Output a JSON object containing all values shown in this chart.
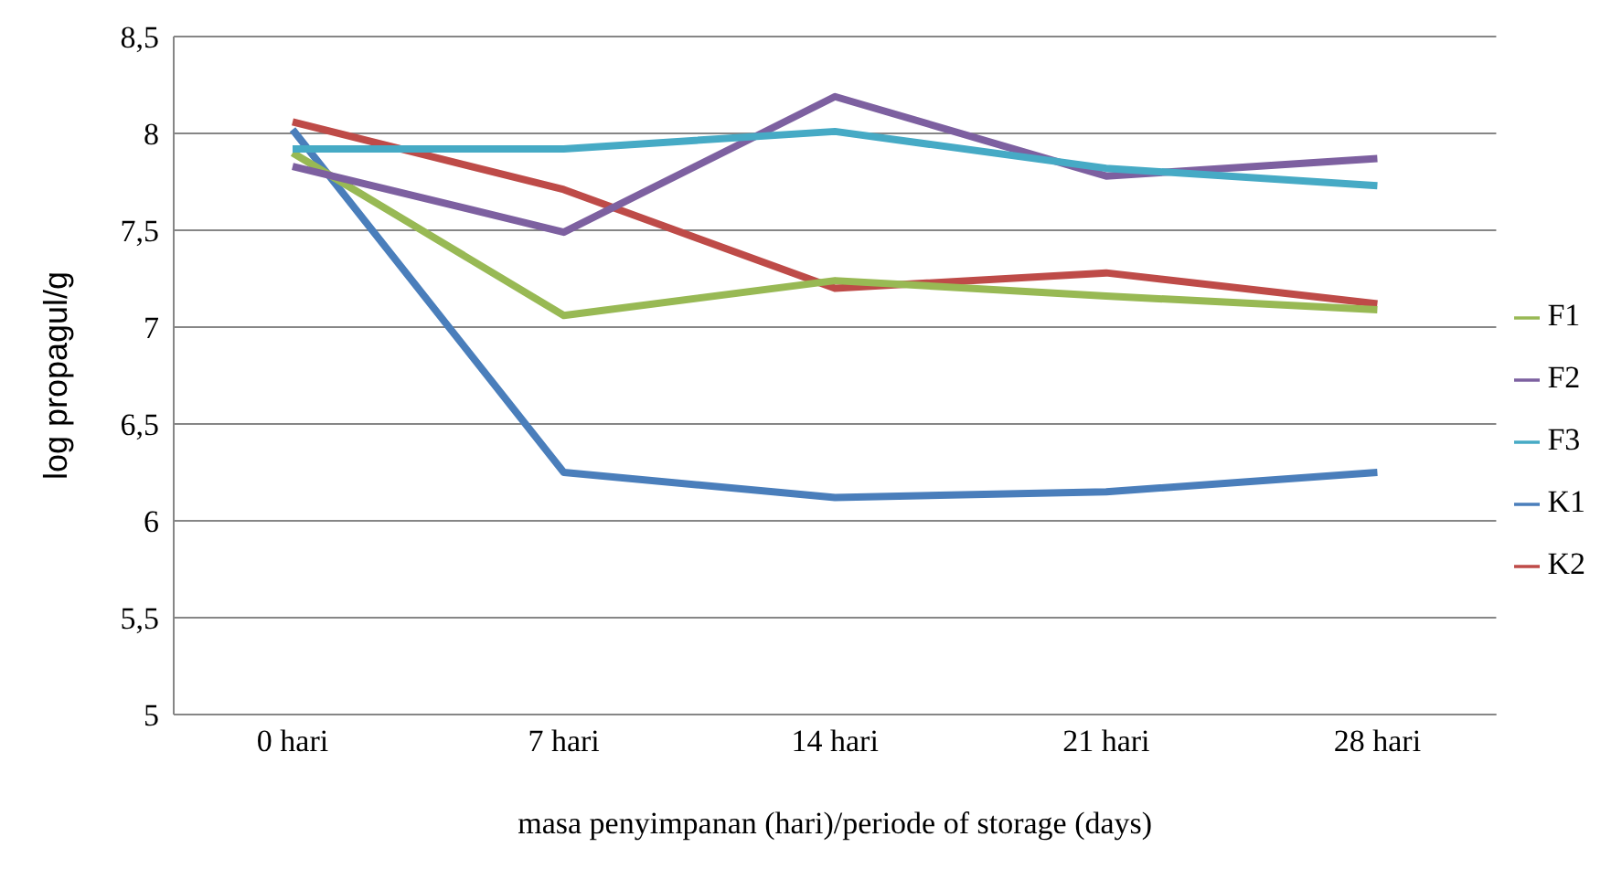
{
  "chart_data": {
    "type": "line",
    "xlabel": "masa penyimpanan (hari)/periode of storage (days)",
    "ylabel": "log propagul/g",
    "categories": [
      "0 hari",
      "7 hari",
      "14 hari",
      "21 hari",
      "28 hari"
    ],
    "series": [
      {
        "name": "K1",
        "color": "#4a7ebb",
        "values": [
          8.02,
          6.25,
          6.12,
          6.15,
          6.25
        ]
      },
      {
        "name": "K2",
        "color": "#be4b48",
        "values": [
          8.06,
          7.71,
          7.2,
          7.28,
          7.12
        ]
      },
      {
        "name": "F1",
        "color": "#98b954",
        "values": [
          7.9,
          7.06,
          7.24,
          7.16,
          7.09
        ]
      },
      {
        "name": "F2",
        "color": "#7d60a0",
        "values": [
          7.83,
          7.49,
          8.19,
          7.78,
          7.87
        ]
      },
      {
        "name": "F3",
        "color": "#46aac5",
        "values": [
          7.92,
          7.92,
          8.01,
          7.82,
          7.73
        ]
      }
    ],
    "ylim": [
      5,
      8.5
    ],
    "yticks": [
      5,
      {
        "value": 5.5,
        "label": "5,5"
      },
      6,
      {
        "value": 6.5,
        "label": "6,5"
      },
      7,
      {
        "value": 7.5,
        "label": "7,5"
      },
      8,
      {
        "value": 8.5,
        "label": "8,5"
      }
    ],
    "grid": "y",
    "legend": "right",
    "marker": "none",
    "line_style": "solid"
  }
}
